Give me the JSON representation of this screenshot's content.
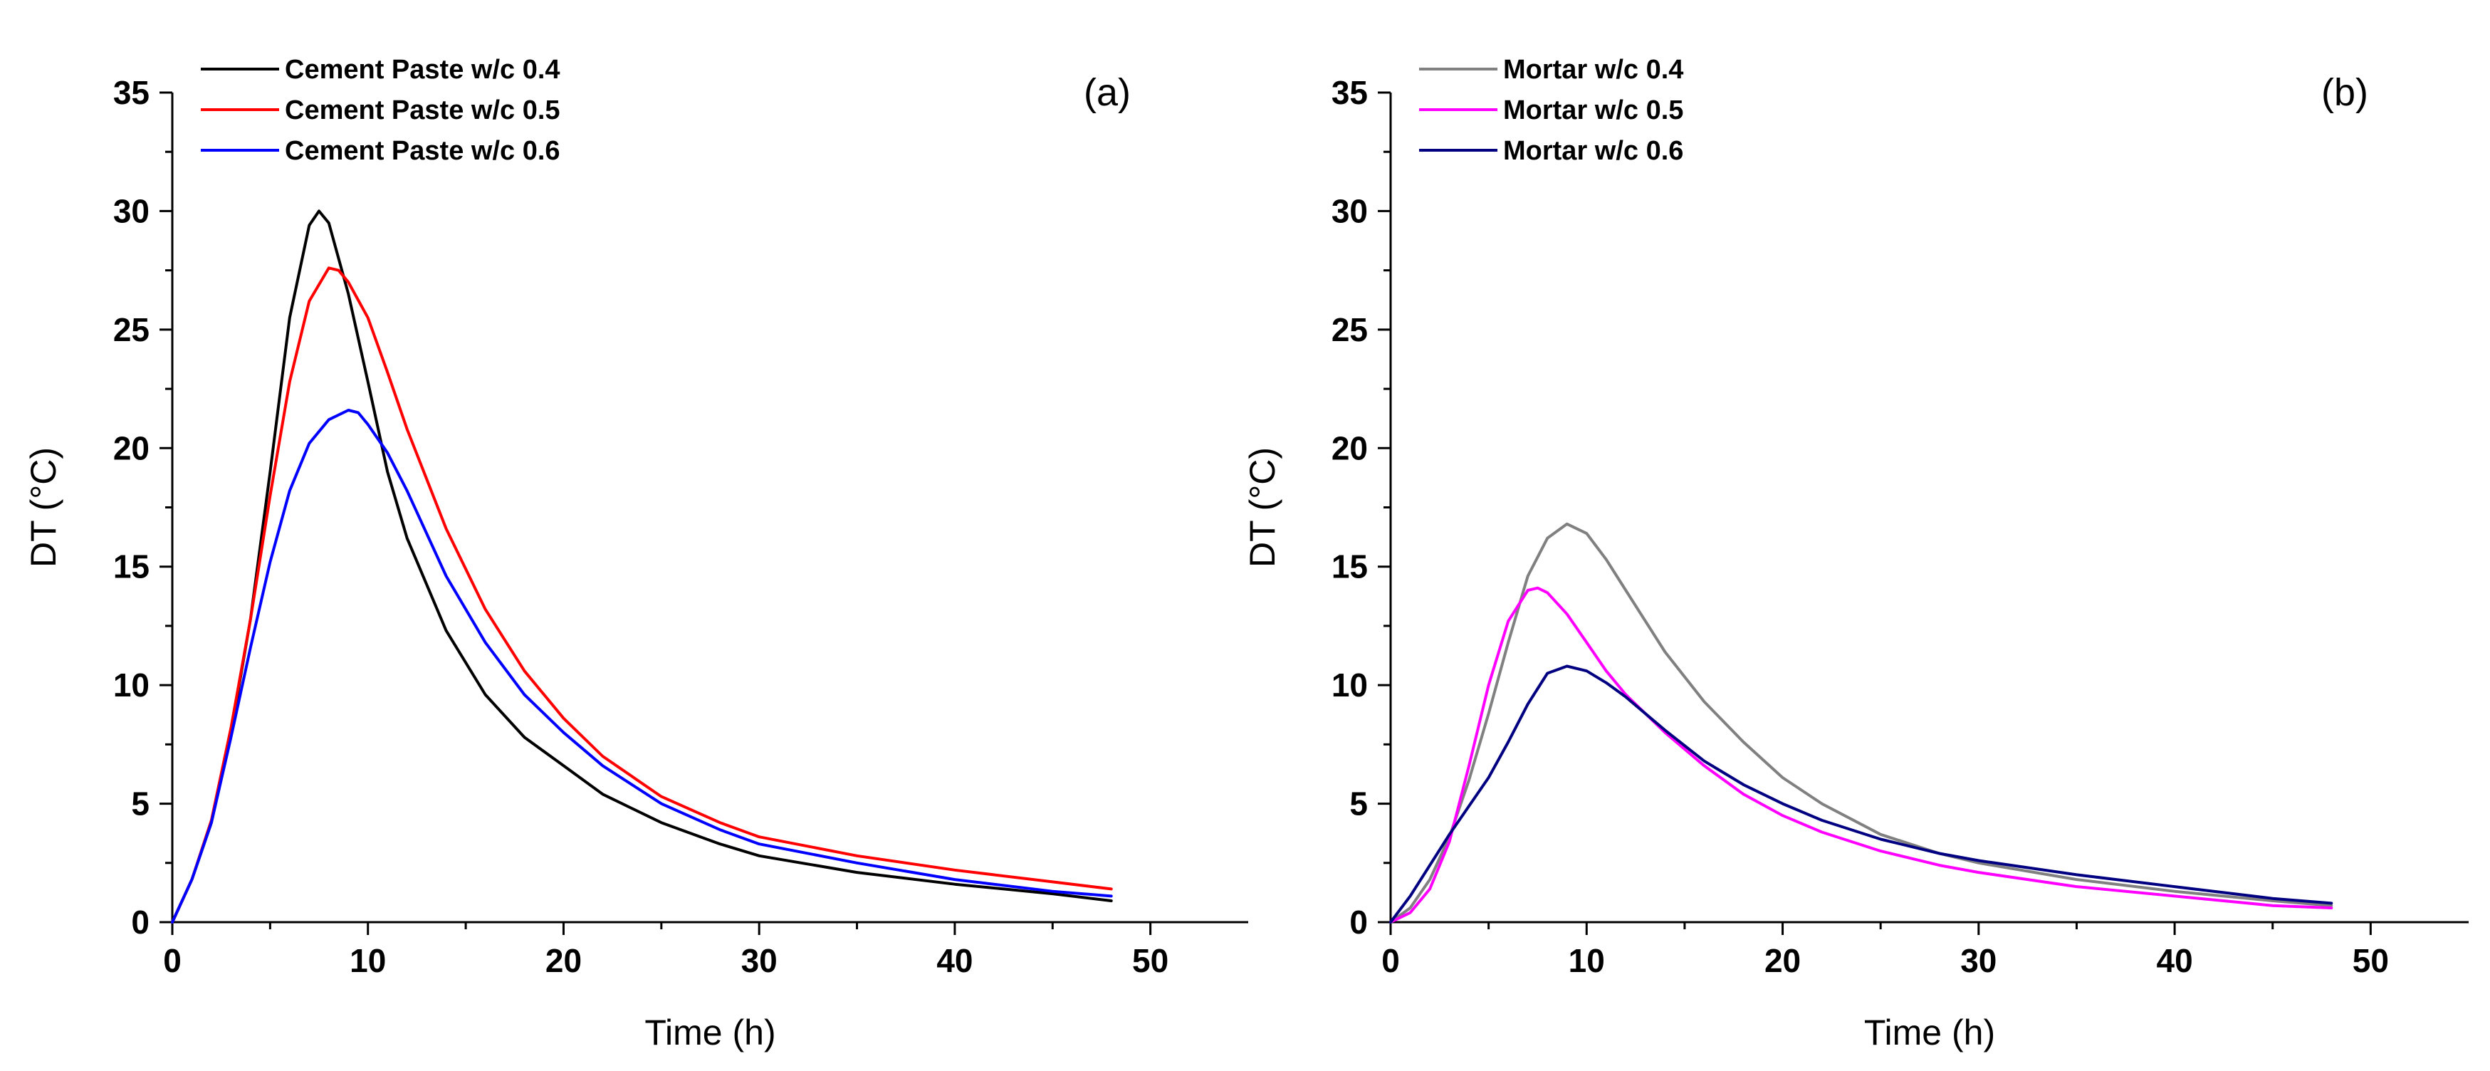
{
  "chart_data": [
    {
      "type": "line",
      "panel_label": "(a)",
      "title": "",
      "xlabel": "Time (h)",
      "ylabel": "DT (°C)",
      "xlim": [
        0,
        55
      ],
      "ylim": [
        0,
        35
      ],
      "xticks": [
        0,
        10,
        20,
        30,
        40,
        50
      ],
      "yticks": [
        0,
        5,
        10,
        15,
        20,
        25,
        30,
        35
      ],
      "xtick_labels": [
        "0",
        "10",
        "20",
        "30",
        "40",
        "50"
      ],
      "ytick_labels": [
        "0",
        "5",
        "10",
        "15",
        "20",
        "25",
        "30",
        "35"
      ],
      "legend_position": "top-left",
      "series": [
        {
          "name": "Cement Paste w/c 0.4",
          "color": "#000000",
          "x": [
            0,
            1,
            2,
            3,
            4,
            5,
            6,
            7,
            7.5,
            8,
            9,
            10,
            11,
            12,
            14,
            16,
            18,
            20,
            22,
            25,
            28,
            30,
            35,
            40,
            45,
            48
          ],
          "y": [
            0,
            1.8,
            4.2,
            8.0,
            12.8,
            19.0,
            25.5,
            29.4,
            30.0,
            29.5,
            26.5,
            22.8,
            19.0,
            16.2,
            12.3,
            9.6,
            7.8,
            6.6,
            5.4,
            4.2,
            3.3,
            2.8,
            2.1,
            1.6,
            1.2,
            0.9
          ]
        },
        {
          "name": "Cement Paste w/c 0.5",
          "color": "#ff0000",
          "x": [
            0,
            1,
            2,
            3,
            4,
            5,
            6,
            7,
            8,
            8.5,
            9,
            10,
            11,
            12,
            14,
            16,
            18,
            20,
            22,
            25,
            28,
            30,
            35,
            40,
            45,
            48
          ],
          "y": [
            0,
            1.8,
            4.3,
            8.2,
            12.8,
            18.0,
            22.8,
            26.2,
            27.6,
            27.5,
            27.0,
            25.5,
            23.2,
            20.8,
            16.6,
            13.2,
            10.6,
            8.6,
            7.0,
            5.3,
            4.2,
            3.6,
            2.8,
            2.2,
            1.7,
            1.4
          ]
        },
        {
          "name": "Cement Paste w/c 0.6",
          "color": "#0000ff",
          "x": [
            0,
            1,
            2,
            3,
            4,
            5,
            6,
            7,
            8,
            9,
            9.5,
            10,
            11,
            12,
            14,
            16,
            18,
            20,
            22,
            25,
            28,
            30,
            35,
            40,
            45,
            48
          ],
          "y": [
            0,
            1.8,
            4.2,
            7.8,
            11.6,
            15.2,
            18.2,
            20.2,
            21.2,
            21.6,
            21.5,
            21.0,
            19.8,
            18.2,
            14.6,
            11.8,
            9.6,
            8.0,
            6.6,
            5.0,
            3.9,
            3.3,
            2.5,
            1.8,
            1.3,
            1.1
          ]
        }
      ]
    },
    {
      "type": "line",
      "panel_label": "(b)",
      "title": "",
      "xlabel": "Time (h)",
      "ylabel": "DT (°C)",
      "xlim": [
        0,
        55
      ],
      "ylim": [
        0,
        35
      ],
      "xticks": [
        0,
        10,
        20,
        30,
        40,
        50
      ],
      "yticks": [
        0,
        5,
        10,
        15,
        20,
        25,
        30,
        35
      ],
      "xtick_labels": [
        "0",
        "10",
        "20",
        "30",
        "40",
        "50"
      ],
      "ytick_labels": [
        "0",
        "5",
        "10",
        "15",
        "20",
        "25",
        "30",
        "35"
      ],
      "legend_position": "top-left",
      "series": [
        {
          "name": "Mortar w/c 0.4",
          "color": "#808080",
          "x": [
            0,
            1,
            2,
            3,
            4,
            5,
            6,
            7,
            8,
            9,
            10,
            11,
            12,
            14,
            16,
            18,
            20,
            22,
            25,
            28,
            30,
            35,
            40,
            45,
            48
          ],
          "y": [
            0,
            0.6,
            1.8,
            3.6,
            6.0,
            8.8,
            11.8,
            14.6,
            16.2,
            16.8,
            16.4,
            15.3,
            14.0,
            11.4,
            9.3,
            7.6,
            6.1,
            5.0,
            3.7,
            2.9,
            2.5,
            1.8,
            1.3,
            0.9,
            0.7
          ]
        },
        {
          "name": "Mortar w/c 0.5",
          "color": "#ff00ff",
          "x": [
            0,
            1,
            2,
            3,
            4,
            5,
            6,
            7,
            7.5,
            8,
            9,
            10,
            11,
            12,
            14,
            16,
            18,
            20,
            22,
            25,
            28,
            30,
            35,
            40,
            45,
            48
          ],
          "y": [
            0,
            0.4,
            1.4,
            3.4,
            6.6,
            10.0,
            12.7,
            14.0,
            14.1,
            13.9,
            13.0,
            11.8,
            10.6,
            9.6,
            8.0,
            6.6,
            5.4,
            4.5,
            3.8,
            3.0,
            2.4,
            2.1,
            1.5,
            1.1,
            0.7,
            0.6
          ]
        },
        {
          "name": "Mortar w/c 0.6",
          "color": "#000080",
          "x": [
            0,
            1,
            2,
            3,
            4,
            5,
            6,
            7,
            8,
            9,
            10,
            11,
            12,
            14,
            16,
            18,
            20,
            22,
            25,
            28,
            30,
            35,
            40,
            45,
            48
          ],
          "y": [
            0,
            1.1,
            2.4,
            3.7,
            4.9,
            6.1,
            7.6,
            9.2,
            10.5,
            10.8,
            10.6,
            10.1,
            9.5,
            8.1,
            6.8,
            5.8,
            5.0,
            4.3,
            3.5,
            2.9,
            2.6,
            2.0,
            1.5,
            1.0,
            0.8
          ]
        }
      ]
    }
  ]
}
